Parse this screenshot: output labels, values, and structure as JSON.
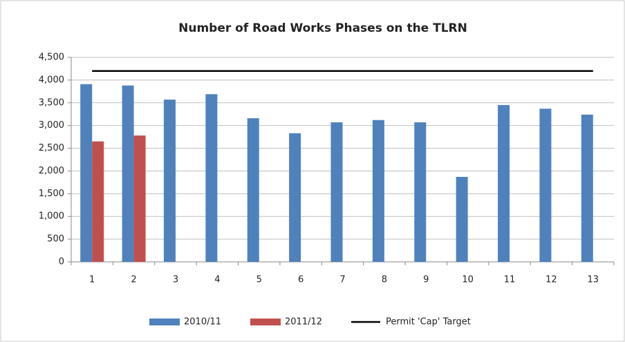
{
  "chart_data": {
    "type": "bar",
    "title": "Number of Road Works Phases on  the TLRN",
    "categories": [
      "1",
      "2",
      "3",
      "4",
      "5",
      "6",
      "7",
      "8",
      "9",
      "10",
      "11",
      "12",
      "13"
    ],
    "series": [
      {
        "name": "2010/11",
        "color": "#4f81bd",
        "values": [
          3910,
          3880,
          3570,
          3690,
          3160,
          2830,
          3070,
          3120,
          3070,
          1870,
          3450,
          3370,
          3240
        ]
      },
      {
        "name": "2011/12",
        "color": "#c0504d",
        "values": [
          2650,
          2780,
          null,
          null,
          null,
          null,
          null,
          null,
          null,
          null,
          null,
          null,
          null
        ]
      },
      {
        "name": "Permit 'Cap' Target",
        "color": "#000000",
        "type": "line",
        "values": [
          4200,
          4200,
          4200,
          4200,
          4200,
          4200,
          4200,
          4200,
          4200,
          4200,
          4200,
          4200,
          4200
        ]
      }
    ],
    "ylim": [
      0,
      4500
    ],
    "yticks": [
      0,
      500,
      {
        "value": 1000,
        "label": "1,000"
      },
      {
        "value": 1500,
        "label": "1,500"
      },
      {
        "value": 2000,
        "label": "2,000"
      },
      {
        "value": 2500,
        "label": "2,500"
      },
      {
        "value": 3000,
        "label": "3,000"
      },
      {
        "value": 3500,
        "label": "3,500"
      },
      {
        "value": 4000,
        "label": "4,000"
      },
      {
        "value": 4500,
        "label": "4,500"
      }
    ],
    "grid": true,
    "legend": "bottom"
  }
}
